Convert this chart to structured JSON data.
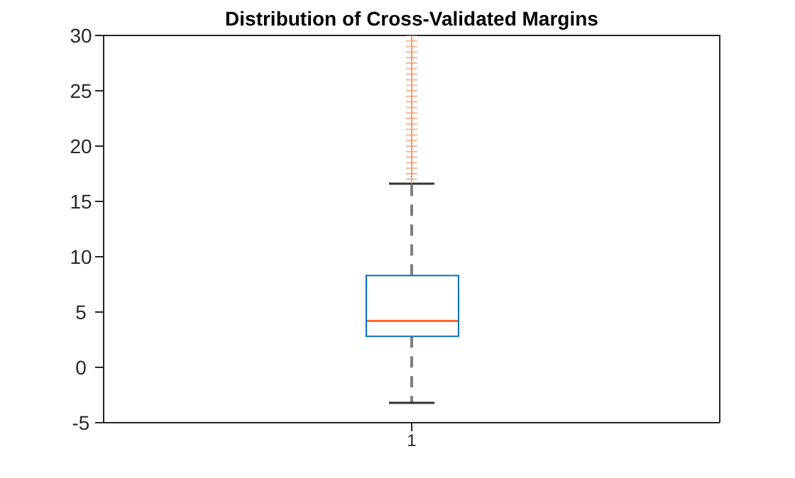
{
  "chart_data": {
    "type": "box",
    "title": "Distribution of Cross-Validated Margins",
    "categories": [
      "1"
    ],
    "color": "#0072bd",
    "marker": "cross",
    "boxes": [
      {
        "low": -3.2,
        "q1": 2.8,
        "median": 4.2,
        "q3": 8.3,
        "high": 16.6,
        "outliers": [
          17,
          17.5,
          18,
          18.5,
          19,
          19.5,
          20,
          20.5,
          21,
          21.5,
          22,
          22.5,
          23,
          23.5,
          24,
          24.5,
          25,
          25.5,
          26,
          26.5,
          27,
          27.5,
          28,
          28.5,
          29,
          29.5,
          30
        ]
      }
    ],
    "ylim": [
      -5,
      30
    ],
    "yticks": [
      -5,
      0,
      5,
      10,
      15,
      20,
      25,
      30
    ]
  }
}
